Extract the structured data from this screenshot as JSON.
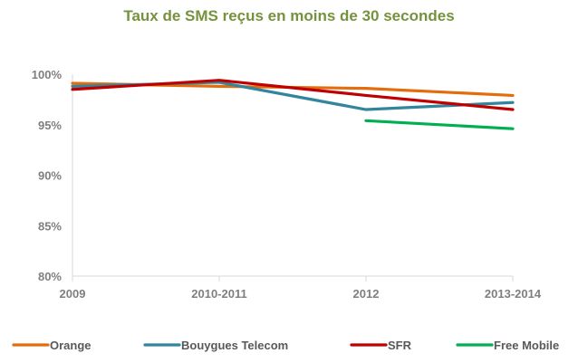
{
  "chart_data": {
    "type": "line",
    "title": "Taux de SMS reçus en moins de 30 secondes",
    "categories": [
      "2009",
      "2010-2011",
      "2012",
      "2013-2014"
    ],
    "y_ticks": [
      "80%",
      "85%",
      "90%",
      "95%",
      "100%"
    ],
    "ylim": [
      80,
      100
    ],
    "grid": false,
    "legend_position": "bottom",
    "series": [
      {
        "name": "Orange",
        "color": "#e46c0a",
        "values": [
          99.1,
          98.8,
          98.6,
          97.9
        ]
      },
      {
        "name": "Bouygues Telecom",
        "color": "#31859c",
        "values": [
          98.8,
          99.2,
          96.5,
          97.2
        ]
      },
      {
        "name": "SFR",
        "color": "#c00000",
        "values": [
          98.5,
          99.4,
          97.9,
          96.5
        ]
      },
      {
        "name": "Free Mobile",
        "color": "#00b050",
        "values": [
          null,
          null,
          95.4,
          94.6
        ]
      }
    ]
  }
}
